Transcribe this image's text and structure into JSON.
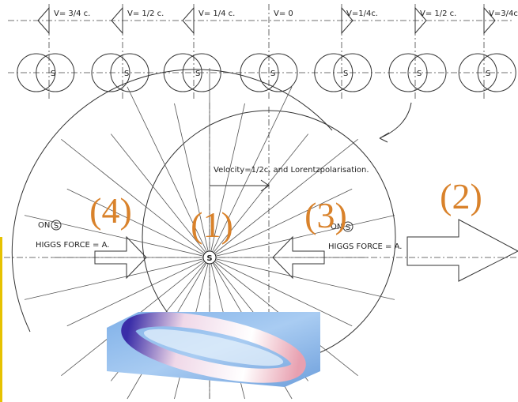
{
  "velocity_labels": [
    "V= 3/4 c.",
    "V= 1/2 c.",
    "V= 1/4 c.",
    "V= 0",
    "V=1/4c.",
    "V= 1/2 c.",
    "V=3/4c."
  ],
  "source_labels": [
    "S",
    "S",
    "S",
    "S",
    "S",
    "S",
    "S"
  ],
  "region_labels": [
    "(4)",
    "(1)",
    "(3)",
    "(2)"
  ],
  "caption": "Velocity=1/2c. and Lorentzpolarisation.",
  "center_label": "S",
  "higgs_labels": [
    {
      "on": "ON",
      "symbol": "S",
      "force": "HIGGS FORCE = A."
    },
    {
      "on": "ON",
      "symbol": "S",
      "force": "HIGGS FORCE = A."
    }
  ]
}
